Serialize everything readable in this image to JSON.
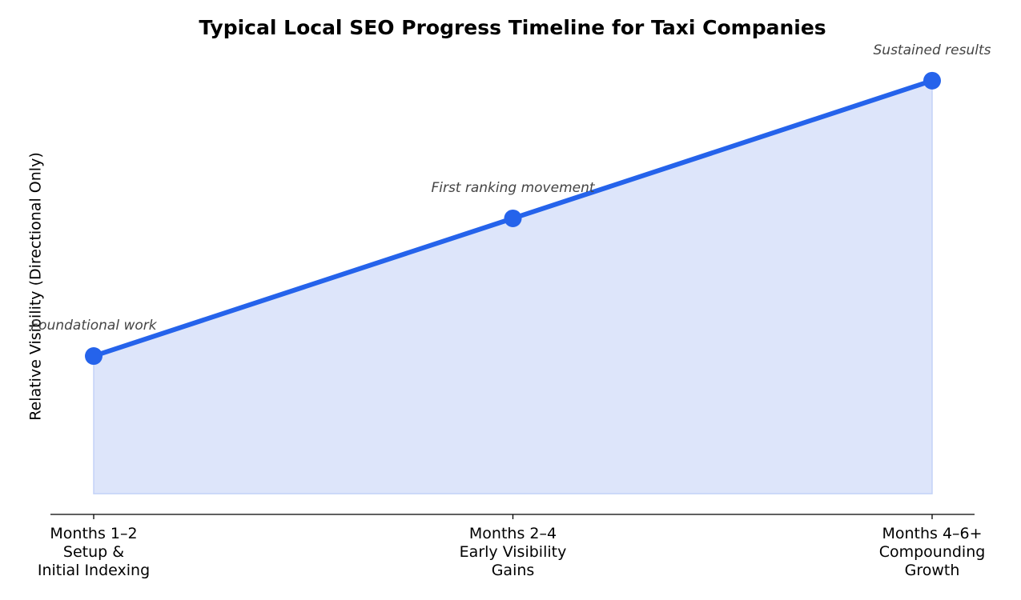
{
  "chart_data": {
    "type": "area-line",
    "title": "Typical Local SEO Progress Timeline for Taxi Companies",
    "y_label": "Relative Visibility (Directional Only)",
    "categories": [
      "Months 1–2\nSetup &\nInitial Indexing",
      "Months 2–4\nEarly Visibility\nGains",
      "Months 4–6+\nCompounding\nGrowth"
    ],
    "values": [
      1,
      2,
      3
    ],
    "annotations": [
      "Foundational work",
      "First ranking movement",
      "Sustained results"
    ],
    "color": "#2563eb",
    "fill_color": "#dde5fa",
    "ylim": [
      -0.15,
      3.15
    ],
    "yticks": []
  }
}
